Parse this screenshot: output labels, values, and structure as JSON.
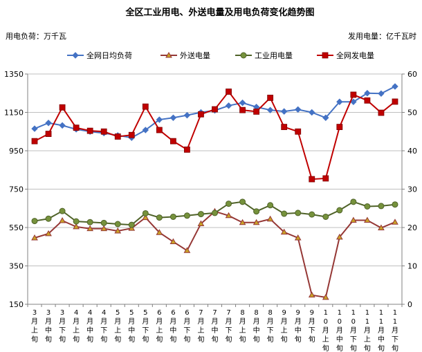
{
  "chart_data": {
    "type": "line",
    "title": "全区工业用电、外送电量及用电负荷变化趋势图",
    "left_unit_label": "用电负荷：万千瓦",
    "right_unit_label": "发用电量：亿千瓦时",
    "categories": [
      [
        "3",
        "月",
        "上",
        "旬"
      ],
      [
        "3",
        "月",
        "中",
        "旬"
      ],
      [
        "3",
        "月",
        "下",
        "旬"
      ],
      [
        "4",
        "月",
        "上",
        "旬"
      ],
      [
        "4",
        "月",
        "中",
        "旬"
      ],
      [
        "4",
        "月",
        "下",
        "旬"
      ],
      [
        "5",
        "月",
        "上",
        "旬"
      ],
      [
        "5",
        "月",
        "中",
        "旬"
      ],
      [
        "5",
        "月",
        "下",
        "旬"
      ],
      [
        "6",
        "月",
        "上",
        "旬"
      ],
      [
        "6",
        "月",
        "中",
        "旬"
      ],
      [
        "6",
        "月",
        "下",
        "旬"
      ],
      [
        "7",
        "月",
        "上",
        "旬"
      ],
      [
        "7",
        "月",
        "中",
        "旬"
      ],
      [
        "7",
        "月",
        "下",
        "旬"
      ],
      [
        "8",
        "月",
        "上",
        "旬"
      ],
      [
        "8",
        "月",
        "中",
        "旬"
      ],
      [
        "8",
        "月",
        "下",
        "旬"
      ],
      [
        "9",
        "月",
        "上",
        "旬"
      ],
      [
        "9",
        "月",
        "中",
        "旬"
      ],
      [
        "9",
        "月",
        "下",
        "旬"
      ],
      [
        "1",
        "0",
        "月",
        "上",
        "旬"
      ],
      [
        "1",
        "0",
        "月",
        "中",
        "旬"
      ],
      [
        "1",
        "0",
        "月",
        "下",
        "旬"
      ],
      [
        "1",
        "1",
        "月",
        "上",
        "旬"
      ],
      [
        "1",
        "1",
        "月",
        "中",
        "旬"
      ],
      [
        "1",
        "1",
        "月",
        "下",
        "旬"
      ]
    ],
    "y_left": {
      "min": 150,
      "max": 1350,
      "ticks": [
        150,
        350,
        550,
        750,
        950,
        1150,
        1350
      ]
    },
    "y_right": {
      "min": 0,
      "max": 60,
      "ticks": [
        0,
        10,
        20,
        30,
        40,
        50,
        60
      ]
    },
    "series": [
      {
        "name": "全网日均负荷",
        "axis": "left",
        "color": "#4472C4",
        "marker": "diamond",
        "values": [
          1065,
          1095,
          1082,
          1062,
          1050,
          1042,
          1030,
          1018,
          1058,
          1112,
          1122,
          1135,
          1150,
          1160,
          1185,
          1200,
          1178,
          1162,
          1155,
          1165,
          1150,
          1122,
          1205,
          1205,
          1250,
          1248,
          1285
        ]
      },
      {
        "name": "外送电量",
        "axis": "right",
        "color": "#953735",
        "marker": "triangle",
        "values": [
          17.3,
          18.4,
          21.8,
          20.2,
          19.7,
          19.7,
          19.1,
          19.8,
          22.6,
          18.7,
          16.3,
          14.0,
          21.0,
          24.2,
          23.1,
          21.3,
          21.3,
          22.2,
          18.8,
          17.3,
          2.4,
          1.8,
          17.5,
          21.9,
          21.9,
          19.9,
          21.4
        ]
      },
      {
        "name": "工业用电量",
        "axis": "right",
        "color": "#4F6228",
        "marker": "circle",
        "values": [
          21.7,
          22.3,
          24.3,
          21.6,
          21.4,
          21.2,
          20.9,
          20.7,
          23.7,
          22.6,
          22.8,
          23.1,
          23.5,
          23.8,
          26.2,
          26.7,
          24.2,
          25.8,
          23.6,
          23.8,
          23.4,
          22.8,
          24.5,
          26.7,
          25.5,
          25.6,
          26.0
        ]
      },
      {
        "name": "全网发电量",
        "axis": "right",
        "color": "#C00000",
        "marker": "square",
        "values": [
          42.5,
          44.4,
          51.3,
          46.0,
          45.2,
          45.0,
          43.7,
          44.1,
          51.5,
          45.4,
          42.5,
          40.3,
          49.5,
          50.8,
          55.4,
          50.6,
          50.2,
          53.8,
          46.2,
          45.0,
          32.6,
          32.8,
          46.2,
          54.6,
          53.1,
          49.9,
          52.8
        ]
      }
    ],
    "legend_position": "top",
    "grid": {
      "horizontal": true,
      "vertical": false
    }
  }
}
